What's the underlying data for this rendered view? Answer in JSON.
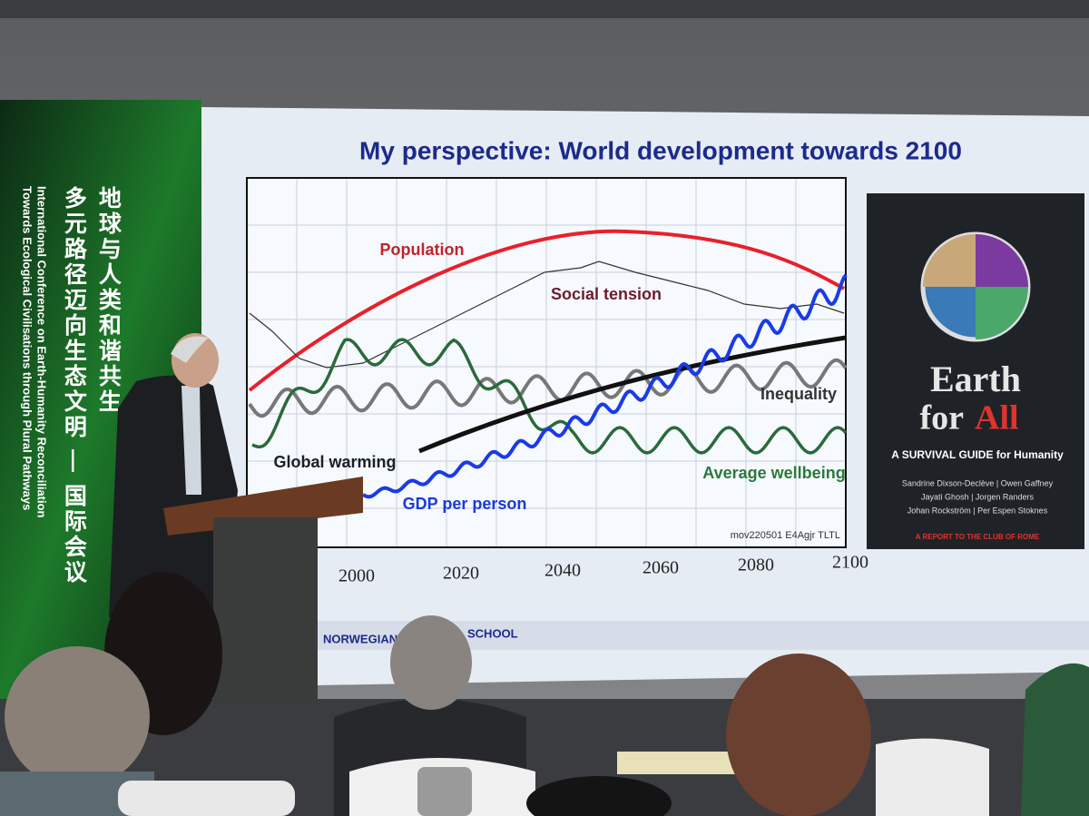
{
  "banner": {
    "chinese_line1": "地球与人类和谐共生",
    "chinese_line2": "多元路径迈向生态文明 — 国际会议",
    "english_line1": "International Conference on Earth-Humanity Reconciliation",
    "english_line2": "Towards Ecological Civilisations through Plural Pathways"
  },
  "slide": {
    "title": "My perspective: World development towards 2100",
    "curve_labels": [
      "Population",
      "Social tension",
      "Inequality",
      "Global warming",
      "GDP per person",
      "Average wellbeing"
    ],
    "source_note": "mov220501 E4Agjr TLTL",
    "x_labels": [
      "2000",
      "2020",
      "2040",
      "2060",
      "2080",
      "2100"
    ],
    "footer_left": "NORWEGIAN",
    "footer_right": "SCHOOL"
  },
  "book": {
    "title_line1": "Earth",
    "title_for": "for",
    "title_all": "All",
    "subtitle": "A SURVIVAL GUIDE for Humanity",
    "authors": [
      "Sandrine Dixson-Declève | Owen Gaffney",
      "Jayati Ghosh | Jorgen Randers",
      "Johan Rockström | Per Espen Stoknes"
    ],
    "report": "A REPORT TO THE CLUB OF ROME"
  }
}
